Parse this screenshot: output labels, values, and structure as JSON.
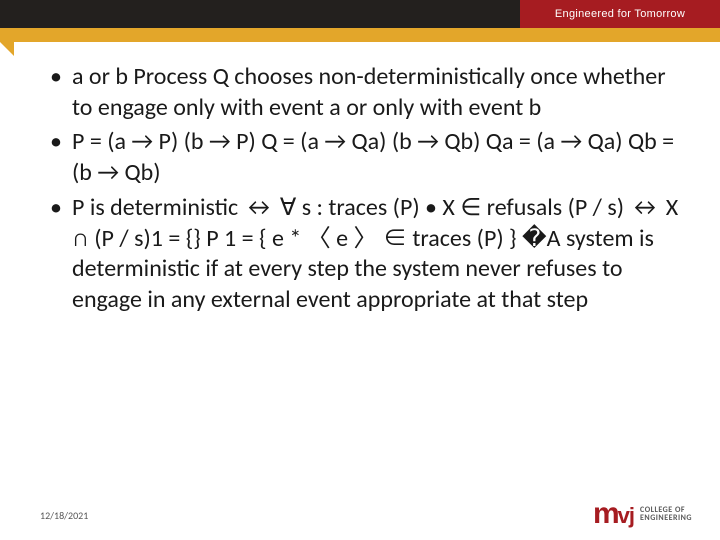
{
  "header": {
    "tagline": "Engineered for Tomorrow",
    "colors": {
      "header_left_bg": "#23201e",
      "header_right_bg": "#a61c21",
      "accent_bar": "#e3a62a"
    }
  },
  "content": {
    "bullets": [
      "a or b Process Q chooses non-deterministically once whether to engage only with event  a or only with event b",
      "P = (a → P) (b → P) Q = (a → Qa) (b → Qb) Qa = (a → Qa) Qb = (b → Qb)",
      "P is deterministic ↔ ∀ s : traces (P) • X ∈ refusals (P / s) ↔ X ∩ (P / s)1 = {} P 1 = { e * 〈 e 〉 ∈ traces (P) } �A system is deterministic if at every step the system never refuses to engage in any external event appropriate at that step"
    ],
    "text_fontsize": 24,
    "text_color": "#1a1a1a"
  },
  "footer": {
    "date": "12/18/2021",
    "logo": {
      "mark_m": "m",
      "mark_vj": "vj",
      "line1": "COLLEGE OF",
      "line2": "ENGINEERING",
      "mark_color": "#a61c21",
      "line1_color": "#5a5a5a",
      "line2_color": "#e3a62a"
    }
  }
}
